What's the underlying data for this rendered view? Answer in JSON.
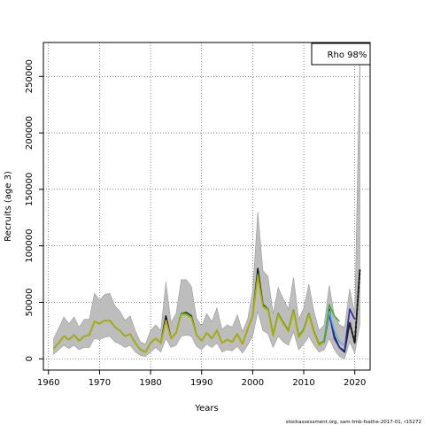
{
  "chart_data": {
    "type": "line",
    "xlabel": "Years",
    "ylabel": "Recruits (age 3)",
    "xlim": [
      1959,
      2023
    ],
    "ylim": [
      -10000,
      280000
    ],
    "xticks": [
      1960,
      1970,
      1980,
      1990,
      2000,
      2010,
      2020
    ],
    "yticks": [
      0,
      50000,
      100000,
      150000,
      200000,
      250000
    ],
    "grid": true,
    "legend": {
      "text": "Rho 98%",
      "position": "top-right"
    },
    "footer": "stockassessment.org, sam-tmb-fsathe-2017-01, r15272",
    "band": {
      "x": [
        1961,
        1962,
        1963,
        1964,
        1965,
        1966,
        1967,
        1968,
        1969,
        1970,
        1971,
        1972,
        1973,
        1974,
        1975,
        1976,
        1977,
        1978,
        1979,
        1980,
        1981,
        1982,
        1983,
        1984,
        1985,
        1986,
        1987,
        1988,
        1989,
        1990,
        1991,
        1992,
        1993,
        1994,
        1995,
        1996,
        1997,
        1998,
        1999,
        2000,
        2001,
        2002,
        2003,
        2004,
        2005,
        2006,
        2007,
        2008,
        2009,
        2010,
        2011,
        2012,
        2013,
        2014,
        2015,
        2016,
        2017,
        2018,
        2019,
        2020,
        2021
      ],
      "upper": [
        18000,
        27000,
        37000,
        31000,
        37000,
        28000,
        35000,
        35000,
        58000,
        52000,
        57000,
        58000,
        47000,
        42000,
        34000,
        38000,
        25000,
        15000,
        13000,
        25000,
        30000,
        25000,
        68000,
        32000,
        40000,
        70000,
        70000,
        64000,
        36000,
        29000,
        40000,
        33000,
        45000,
        26000,
        30000,
        28000,
        39000,
        24000,
        35000,
        60000,
        130000,
        78000,
        73000,
        40000,
        63000,
        53000,
        44000,
        72000,
        35000,
        45000,
        66000,
        42000,
        25000,
        30000,
        65000,
        38000,
        30000,
        28000,
        62000,
        40000,
        270000
      ],
      "lower": [
        4000,
        8000,
        12000,
        9000,
        12000,
        8000,
        10000,
        10000,
        18000,
        17000,
        19000,
        20000,
        15000,
        13000,
        10000,
        12000,
        6000,
        3000,
        2000,
        6000,
        10000,
        6000,
        18000,
        10000,
        12000,
        20000,
        21000,
        20000,
        11000,
        8000,
        13000,
        10000,
        14000,
        6000,
        8000,
        7000,
        11000,
        5000,
        12000,
        20000,
        42000,
        25000,
        22000,
        10000,
        20000,
        15000,
        12000,
        24000,
        8000,
        13000,
        20000,
        12000,
        6000,
        8000,
        18000,
        8000,
        2000,
        0,
        15000,
        5000,
        30000
      ]
    },
    "series": [
      {
        "color": "#1a1a1a",
        "x": [
          1961,
          1962,
          1963,
          1964,
          1965,
          1966,
          1967,
          1968,
          1969,
          1970,
          1971,
          1972,
          1973,
          1974,
          1975,
          1976,
          1977,
          1978,
          1979,
          1980,
          1981,
          1982,
          1983,
          1984,
          1985,
          1986,
          1987,
          1988,
          1989,
          1990,
          1991,
          1992,
          1993,
          1994,
          1995,
          1996,
          1997,
          1998,
          1999,
          2000,
          2001,
          2002,
          2003,
          2004,
          2005,
          2006,
          2007,
          2008,
          2009,
          2010,
          2011,
          2012,
          2013,
          2014,
          2015,
          2016,
          2017,
          2018,
          2019,
          2020,
          2021
        ],
        "y": [
          9000,
          14000,
          20000,
          17000,
          21000,
          16000,
          20000,
          21000,
          33000,
          31000,
          34000,
          34000,
          28000,
          25000,
          20000,
          22000,
          14000,
          8000,
          6000,
          14000,
          18000,
          14000,
          38000,
          18000,
          23000,
          40000,
          41000,
          38000,
          21000,
          16000,
          23000,
          18000,
          25000,
          14000,
          17000,
          15000,
          22000,
          13000,
          26000,
          38000,
          80000,
          48000,
          44000,
          21000,
          40000,
          32000,
          25000,
          43000,
          20000,
          26000,
          40000,
          24000,
          13000,
          16000,
          44000,
          20000,
          10000,
          6000,
          32000,
          14000,
          79000
        ]
      },
      {
        "color": "#2a2a9a",
        "x": [
          2013,
          2014,
          2015,
          2016,
          2017,
          2018,
          2019,
          2020
        ],
        "y": [
          12000,
          15000,
          40000,
          18000,
          10000,
          7000,
          44000,
          35000
        ]
      },
      {
        "color": "#5ab4e0",
        "x": [
          2013,
          2014,
          2015,
          2016,
          2017,
          2018
        ],
        "y": [
          13000,
          16000,
          42000,
          25000,
          15000,
          12000
        ]
      },
      {
        "color": "#48a838",
        "x": [
          1961,
          1962,
          1963,
          1964,
          1965,
          1966,
          1967,
          1968,
          1969,
          1970,
          1971,
          1972,
          1973,
          1974,
          1975,
          1976,
          1977,
          1978,
          1979,
          1980,
          1981,
          1982,
          1983,
          1984,
          1985,
          1986,
          1987,
          1988,
          1989,
          1990,
          1991,
          1992,
          1993,
          1994,
          1995,
          1996,
          1997,
          1998,
          1999,
          2000,
          2001,
          2002,
          2003,
          2004,
          2005,
          2006,
          2007,
          2008,
          2009,
          2010,
          2011,
          2012,
          2013,
          2014,
          2015,
          2016,
          2017
        ],
        "y": [
          9000,
          14000,
          20000,
          17000,
          21000,
          16000,
          20000,
          21000,
          33000,
          31000,
          34000,
          34000,
          28000,
          25000,
          20000,
          22000,
          14000,
          8000,
          6000,
          14000,
          18000,
          14000,
          34000,
          18000,
          23000,
          40000,
          40000,
          37000,
          21000,
          16000,
          23000,
          18000,
          25000,
          14000,
          17000,
          15000,
          22000,
          13000,
          26000,
          38000,
          75000,
          47000,
          44000,
          21000,
          40000,
          32000,
          25000,
          43000,
          20000,
          26000,
          40000,
          24000,
          13000,
          16000,
          48000,
          38000,
          33000
        ]
      },
      {
        "color": "#b0b000",
        "x": [
          1961,
          1962,
          1963,
          1964,
          1965,
          1966,
          1967,
          1968,
          1969,
          1970,
          1971,
          1972,
          1973,
          1974,
          1975,
          1976,
          1977,
          1978,
          1979,
          1980,
          1981,
          1982,
          1983,
          1984,
          1985,
          1986,
          1987,
          1988,
          1989,
          1990,
          1991,
          1992,
          1993,
          1994,
          1995,
          1996,
          1997,
          1998,
          1999,
          2000,
          2001,
          2002,
          2003,
          2004,
          2005,
          2006,
          2007,
          2008,
          2009,
          2010,
          2011,
          2012,
          2013,
          2014
        ],
        "y": [
          9000,
          14000,
          20000,
          17000,
          21000,
          16000,
          20000,
          21000,
          33000,
          31000,
          34000,
          34000,
          28000,
          25000,
          20000,
          22000,
          14000,
          8000,
          6000,
          14000,
          18000,
          14000,
          34000,
          18000,
          23000,
          39000,
          39000,
          36000,
          21000,
          16000,
          23000,
          18000,
          25000,
          14000,
          17000,
          15000,
          22000,
          13000,
          26000,
          38000,
          73000,
          46000,
          43000,
          20000,
          39000,
          31000,
          24000,
          42000,
          19000,
          25000,
          39000,
          23000,
          12000,
          15000
        ]
      },
      {
        "color": "#1a1a1a",
        "dashed": true,
        "x": [
          2019,
          2020,
          2021
        ],
        "y": [
          32000,
          14000,
          79000
        ]
      }
    ]
  }
}
